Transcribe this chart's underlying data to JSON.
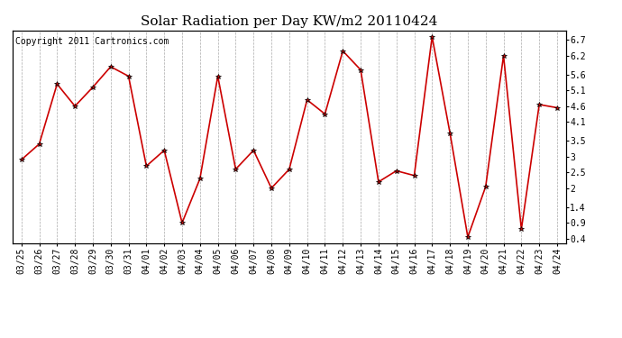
{
  "title": "Solar Radiation per Day KW/m2 20110424",
  "copyright": "Copyright 2011 Cartronics.com",
  "dates": [
    "03/25",
    "03/26",
    "03/27",
    "03/28",
    "03/29",
    "03/30",
    "03/31",
    "04/01",
    "04/02",
    "04/03",
    "04/04",
    "04/05",
    "04/06",
    "04/07",
    "04/08",
    "04/09",
    "04/10",
    "04/11",
    "04/12",
    "04/13",
    "04/14",
    "04/15",
    "04/16",
    "04/17",
    "04/18",
    "04/19",
    "04/20",
    "04/21",
    "04/22",
    "04/23",
    "04/24"
  ],
  "values": [
    2.9,
    3.4,
    5.3,
    4.6,
    5.2,
    5.85,
    5.55,
    2.7,
    3.2,
    0.9,
    2.3,
    5.55,
    2.6,
    3.2,
    2.0,
    2.6,
    4.8,
    4.35,
    6.35,
    5.75,
    2.2,
    2.55,
    2.4,
    6.8,
    3.75,
    0.45,
    2.05,
    6.2,
    0.7,
    4.65,
    4.55
  ],
  "line_color": "#cc0000",
  "marker": "*",
  "marker_color": "#000000",
  "marker_size": 4,
  "line_width": 1.2,
  "yticks": [
    0.4,
    0.9,
    1.4,
    2.0,
    2.5,
    3.0,
    3.5,
    4.1,
    4.6,
    5.1,
    5.6,
    6.2,
    6.7
  ],
  "ylim": [
    0.25,
    7.0
  ],
  "bg_color": "#ffffff",
  "plot_bg_color": "#ffffff",
  "grid_color": "#aaaaaa",
  "title_fontsize": 11,
  "copyright_fontsize": 7,
  "tick_fontsize": 7
}
